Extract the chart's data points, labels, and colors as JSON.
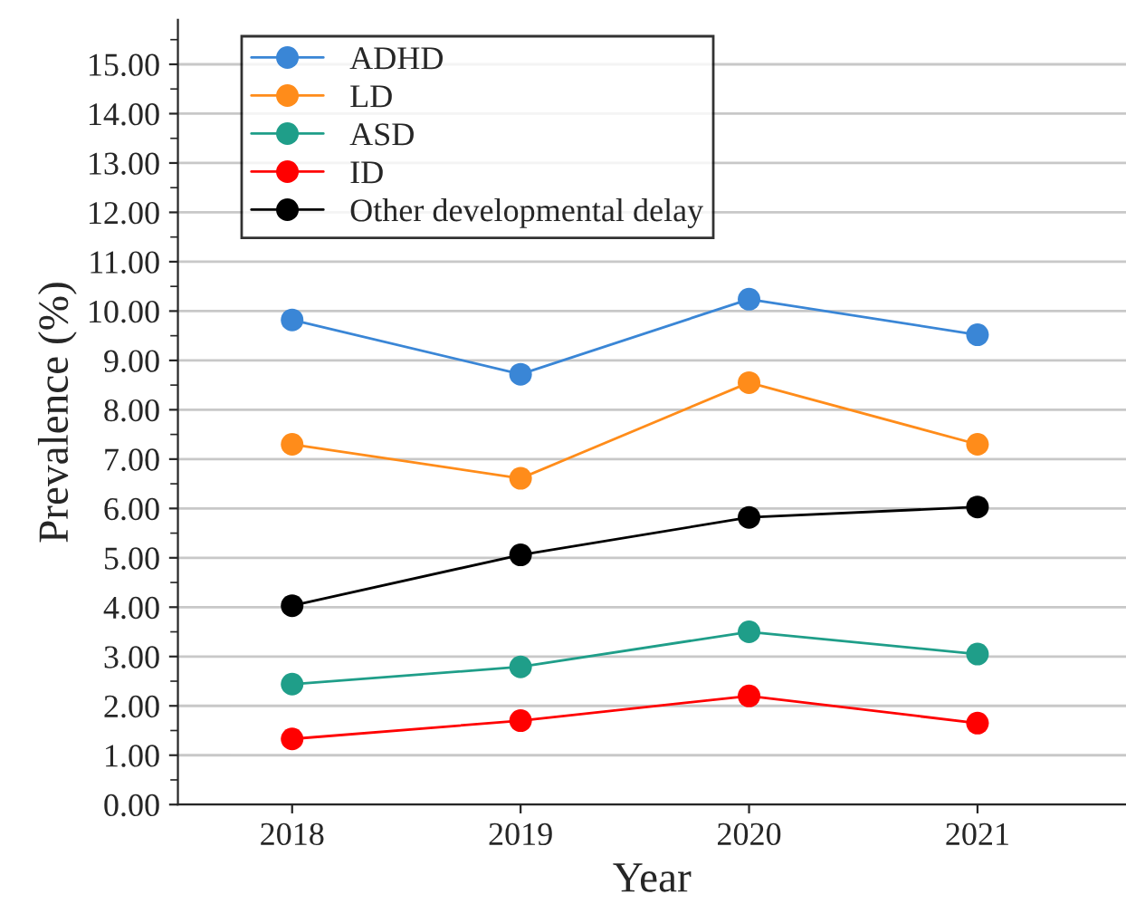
{
  "chart_data": {
    "type": "line",
    "xlabel": "Year",
    "ylabel": "Prevalence (%)",
    "categories": [
      "2018",
      "2019",
      "2020",
      "2021"
    ],
    "series": [
      {
        "name": "ADHD",
        "color": "#3a86d6",
        "values": [
          9.82,
          8.72,
          10.24,
          9.52
        ]
      },
      {
        "name": "LD",
        "color": "#ff8c1a",
        "values": [
          7.3,
          6.61,
          8.55,
          7.3
        ]
      },
      {
        "name": "ASD",
        "color": "#1f9e89",
        "values": [
          2.44,
          2.79,
          3.5,
          3.05
        ]
      },
      {
        "name": "ID",
        "color": "#ff0000",
        "values": [
          1.33,
          1.7,
          2.2,
          1.65
        ]
      },
      {
        "name": "Other developmental delay",
        "color": "#000000",
        "values": [
          4.03,
          5.06,
          5.82,
          6.03
        ]
      }
    ],
    "ylim": [
      0,
      15.9
    ],
    "yticks": [
      {
        "value": 0,
        "label": "0.00"
      },
      {
        "value": 1,
        "label": "1.00"
      },
      {
        "value": 2,
        "label": "2.00"
      },
      {
        "value": 3,
        "label": "3.00"
      },
      {
        "value": 4,
        "label": "4.00"
      },
      {
        "value": 5,
        "label": "5.00"
      },
      {
        "value": 6,
        "label": "6.00"
      },
      {
        "value": 7,
        "label": "7.00"
      },
      {
        "value": 8,
        "label": "8.00"
      },
      {
        "value": 9,
        "label": "9.00"
      },
      {
        "value": 10,
        "label": "10.00"
      },
      {
        "value": 11,
        "label": "11.00"
      },
      {
        "value": 12,
        "label": "12.00"
      },
      {
        "value": 13,
        "label": "13.00"
      },
      {
        "value": 14,
        "label": "14.00"
      },
      {
        "value": 15,
        "label": "15.00"
      }
    ],
    "grid": "y",
    "legend": "top left",
    "marker": "circle",
    "line_style": "solid"
  }
}
